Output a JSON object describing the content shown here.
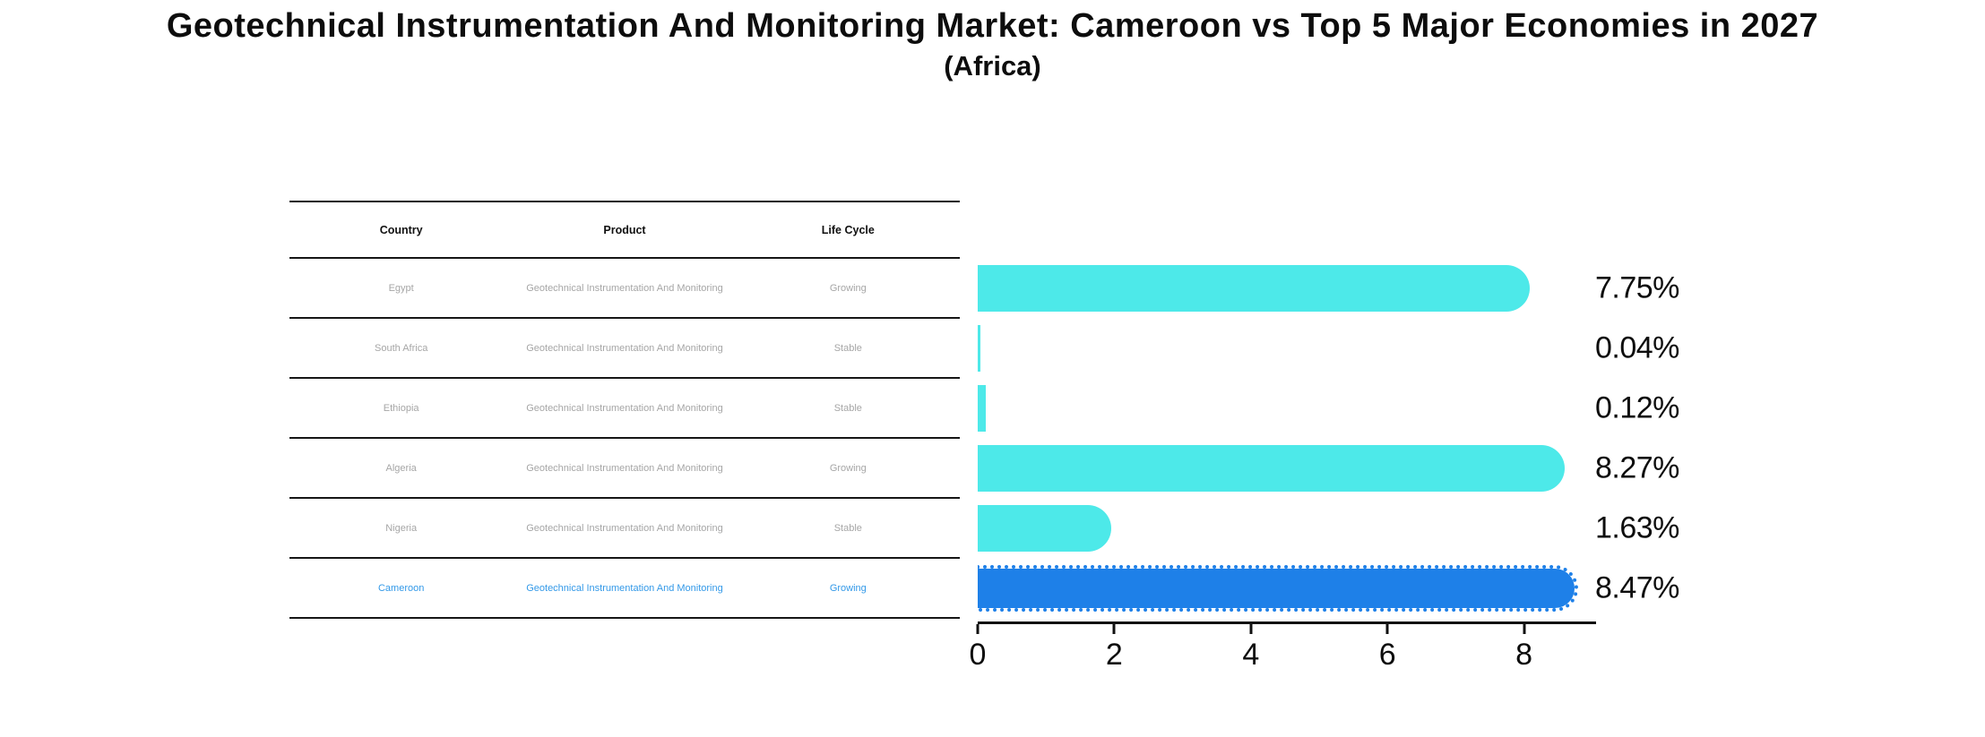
{
  "title": "Geotechnical Instrumentation And Monitoring Market: Cameroon vs Top 5 Major Economies in 2027",
  "subtitle": "(Africa)",
  "table": {
    "headers": [
      "Country",
      "Product",
      "Life Cycle"
    ],
    "rows": [
      {
        "country": "Egypt",
        "product": "Geotechnical Instrumentation And Monitoring",
        "life_cycle": "Growing"
      },
      {
        "country": "South Africa",
        "product": "Geotechnical Instrumentation And Monitoring",
        "life_cycle": "Stable"
      },
      {
        "country": "Ethiopia",
        "product": "Geotechnical Instrumentation And Monitoring",
        "life_cycle": "Stable"
      },
      {
        "country": "Algeria",
        "product": "Geotechnical Instrumentation And Monitoring",
        "life_cycle": "Growing"
      },
      {
        "country": "Nigeria",
        "product": "Geotechnical Instrumentation And Monitoring",
        "life_cycle": "Stable"
      },
      {
        "country": "Cameroon",
        "product": "Geotechnical Instrumentation And Monitoring",
        "life_cycle": "Growing"
      }
    ],
    "highlight_row": "Cameroon"
  },
  "chart_data": {
    "type": "bar",
    "orientation": "horizontal",
    "title": "Geotechnical Instrumentation And Monitoring Market: Cameroon vs Top 5 Major Economies in 2027 (Africa)",
    "categories": [
      "Egypt",
      "South Africa",
      "Ethiopia",
      "Algeria",
      "Nigeria",
      "Cameroon"
    ],
    "values": [
      7.75,
      0.04,
      0.12,
      8.27,
      1.63,
      8.47
    ],
    "value_labels": [
      "7.75%",
      "0.04%",
      "0.12%",
      "8.27%",
      "1.63%",
      "8.47%"
    ],
    "x_ticks": [
      0,
      2,
      4,
      6,
      8
    ],
    "x_tick_labels": [
      "0",
      "2",
      "4",
      "6",
      "8"
    ],
    "xlim": [
      0,
      9.05
    ],
    "grid": false,
    "legend": false,
    "highlight_index": 5,
    "colors": {
      "bar_default": "#4DE9E9",
      "bar_highlight": "#1E80E8",
      "highlight_text": "#3399E8",
      "cell_text": "#A6A6A6",
      "axis": "#111111"
    }
  }
}
